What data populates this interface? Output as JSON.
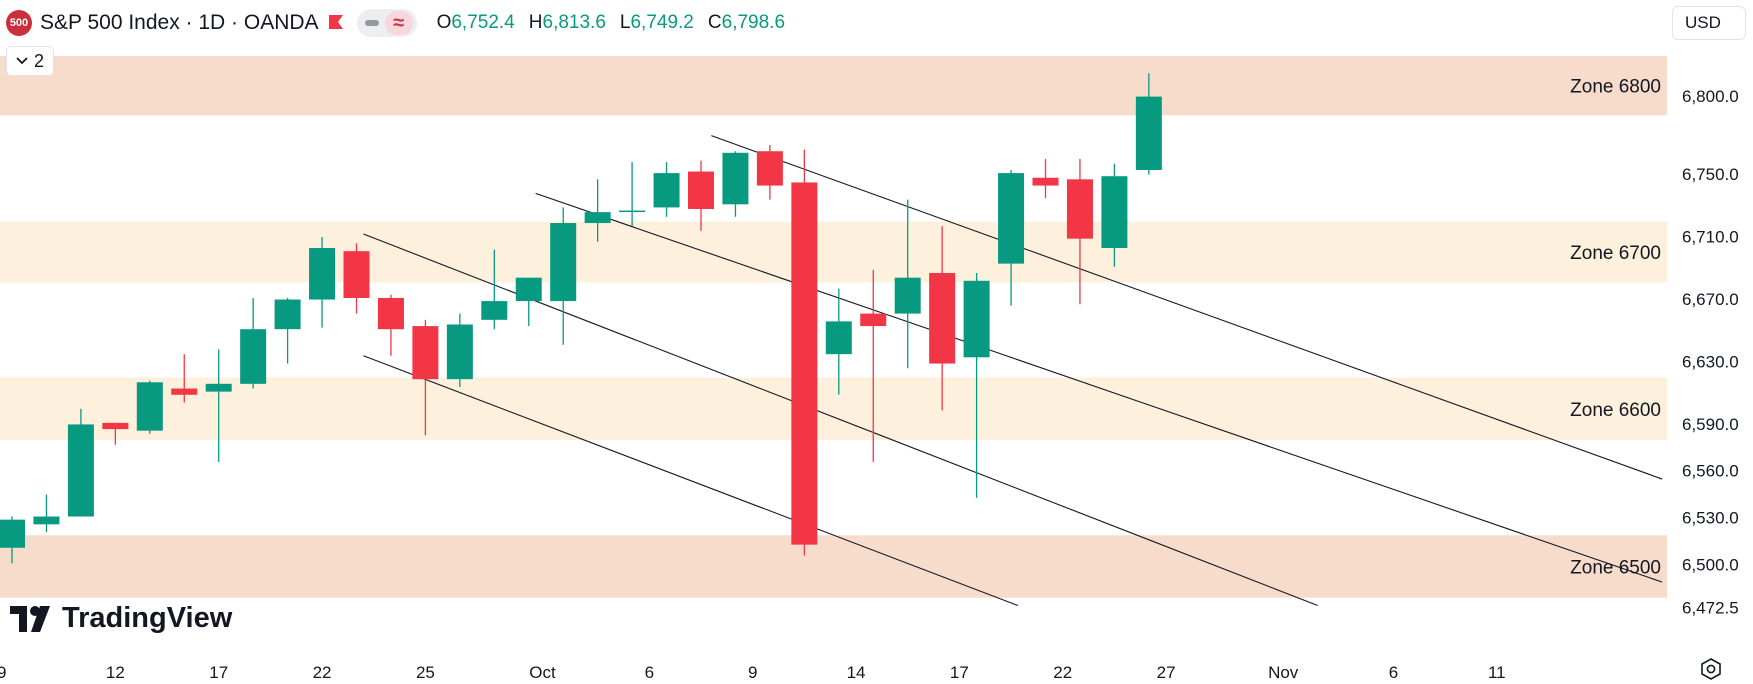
{
  "header": {
    "symbol_badge": "500",
    "title": "S&P 500 Index · 1D · OANDA",
    "ohlc": [
      {
        "key": "O",
        "value": "6,752.4"
      },
      {
        "key": "H",
        "value": "6,813.6"
      },
      {
        "key": "L",
        "value": "6,749.2"
      },
      {
        "key": "C",
        "value": "6,798.6"
      }
    ],
    "collapse_count": "2",
    "currency": "USD"
  },
  "logo": {
    "text": "TradingView"
  },
  "colors": {
    "up": "#089981",
    "down": "#f23645",
    "zone_dark": "#f8dccb",
    "zone_light": "#fdf0dc",
    "text": "#131722",
    "axis_text": "#131722"
  },
  "chart_data": {
    "type": "candlestick",
    "ylim": [
      6465,
      6825
    ],
    "y_ticks": [
      {
        "value": 6800,
        "label": "6,800.0"
      },
      {
        "value": 6750,
        "label": "6,750.0"
      },
      {
        "value": 6710,
        "label": "6,710.0"
      },
      {
        "value": 6670,
        "label": "6,670.0"
      },
      {
        "value": 6630,
        "label": "6,630.0"
      },
      {
        "value": 6590,
        "label": "6,590.0"
      },
      {
        "value": 6560,
        "label": "6,560.0"
      },
      {
        "value": 6530,
        "label": "6,530.0"
      },
      {
        "value": 6500,
        "label": "6,500.0"
      },
      {
        "value": 6472.5,
        "label": "6,472.5"
      }
    ],
    "x_ticks": [
      {
        "index": -0.3,
        "label": "9"
      },
      {
        "index": 3,
        "label": "12"
      },
      {
        "index": 6,
        "label": "17"
      },
      {
        "index": 9,
        "label": "22"
      },
      {
        "index": 12,
        "label": "25"
      },
      {
        "index": 15.4,
        "label": "Oct"
      },
      {
        "index": 18.5,
        "label": "6"
      },
      {
        "index": 21.5,
        "label": "9"
      },
      {
        "index": 24.5,
        "label": "14"
      },
      {
        "index": 27.5,
        "label": "17"
      },
      {
        "index": 30.5,
        "label": "22"
      },
      {
        "index": 33.5,
        "label": "27"
      },
      {
        "index": 36.9,
        "label": "Nov"
      },
      {
        "index": 40.1,
        "label": "6"
      },
      {
        "index": 43.1,
        "label": "11"
      }
    ],
    "zones": [
      {
        "label": "Zone 6800",
        "low": 6787,
        "high": 6825,
        "shade": "dark"
      },
      {
        "label": "Zone 6700",
        "low": 6680,
        "high": 6719,
        "shade": "light"
      },
      {
        "label": "Zone 6600",
        "low": 6579,
        "high": 6619,
        "shade": "light"
      },
      {
        "label": "Zone 6500",
        "low": 6478,
        "high": 6518,
        "shade": "dark"
      }
    ],
    "trendlines": [
      {
        "x1": 20.3,
        "y1": 6774,
        "x2": 47.9,
        "y2": 6554
      },
      {
        "x1": 15.2,
        "y1": 6737,
        "x2": 47.9,
        "y2": 6488
      },
      {
        "x1": 10.2,
        "y1": 6711,
        "x2": 37.9,
        "y2": 6473
      },
      {
        "x1": 10.2,
        "y1": 6633,
        "x2": 29.2,
        "y2": 6473
      }
    ],
    "candles": [
      {
        "o": 6510,
        "h": 6530,
        "l": 6500,
        "c": 6528
      },
      {
        "o": 6525,
        "h": 6544,
        "l": 6520,
        "c": 6530
      },
      {
        "o": 6530,
        "h": 6599,
        "l": 6530,
        "c": 6589
      },
      {
        "o": 6590,
        "h": 6590,
        "l": 6576,
        "c": 6586
      },
      {
        "o": 6585,
        "h": 6617,
        "l": 6583,
        "c": 6616
      },
      {
        "o": 6612,
        "h": 6634,
        "l": 6603,
        "c": 6608
      },
      {
        "o": 6610,
        "h": 6637,
        "l": 6565,
        "c": 6615
      },
      {
        "o": 6615,
        "h": 6670,
        "l": 6612,
        "c": 6650
      },
      {
        "o": 6650,
        "h": 6670,
        "l": 6628,
        "c": 6669
      },
      {
        "o": 6669,
        "h": 6709,
        "l": 6651,
        "c": 6702
      },
      {
        "o": 6700,
        "h": 6705,
        "l": 6660,
        "c": 6670
      },
      {
        "o": 6670,
        "h": 6672,
        "l": 6633,
        "c": 6650
      },
      {
        "o": 6652,
        "h": 6656,
        "l": 6582,
        "c": 6618
      },
      {
        "o": 6618,
        "h": 6660,
        "l": 6613,
        "c": 6653
      },
      {
        "o": 6656,
        "h": 6701,
        "l": 6650,
        "c": 6668
      },
      {
        "o": 6668,
        "h": 6680,
        "l": 6652,
        "c": 6683
      },
      {
        "o": 6668,
        "h": 6728,
        "l": 6640,
        "c": 6718
      },
      {
        "o": 6718,
        "h": 6746,
        "l": 6706,
        "c": 6725
      },
      {
        "o": 6726,
        "h": 6757,
        "l": 6716,
        "c": 6726
      },
      {
        "o": 6728,
        "h": 6757,
        "l": 6722,
        "c": 6750
      },
      {
        "o": 6751,
        "h": 6758,
        "l": 6713,
        "c": 6727
      },
      {
        "o": 6730,
        "h": 6764,
        "l": 6722,
        "c": 6763
      },
      {
        "o": 6764,
        "h": 6768,
        "l": 6733,
        "c": 6742
      },
      {
        "o": 6744,
        "h": 6765,
        "l": 6505,
        "c": 6512
      },
      {
        "o": 6634,
        "h": 6676,
        "l": 6608,
        "c": 6655
      },
      {
        "o": 6660,
        "h": 6688,
        "l": 6565,
        "c": 6652
      },
      {
        "o": 6660,
        "h": 6733,
        "l": 6625,
        "c": 6683
      },
      {
        "o": 6686,
        "h": 6716,
        "l": 6598,
        "c": 6628
      },
      {
        "o": 6632,
        "h": 6686,
        "l": 6542,
        "c": 6681
      },
      {
        "o": 6692,
        "h": 6752,
        "l": 6665,
        "c": 6750
      },
      {
        "o": 6747,
        "h": 6759,
        "l": 6734,
        "c": 6742
      },
      {
        "o": 6746,
        "h": 6759,
        "l": 6666,
        "c": 6708
      },
      {
        "o": 6702,
        "h": 6756,
        "l": 6690,
        "c": 6748
      },
      {
        "o": 6752,
        "h": 6814,
        "l": 6749,
        "c": 6799
      }
    ]
  }
}
